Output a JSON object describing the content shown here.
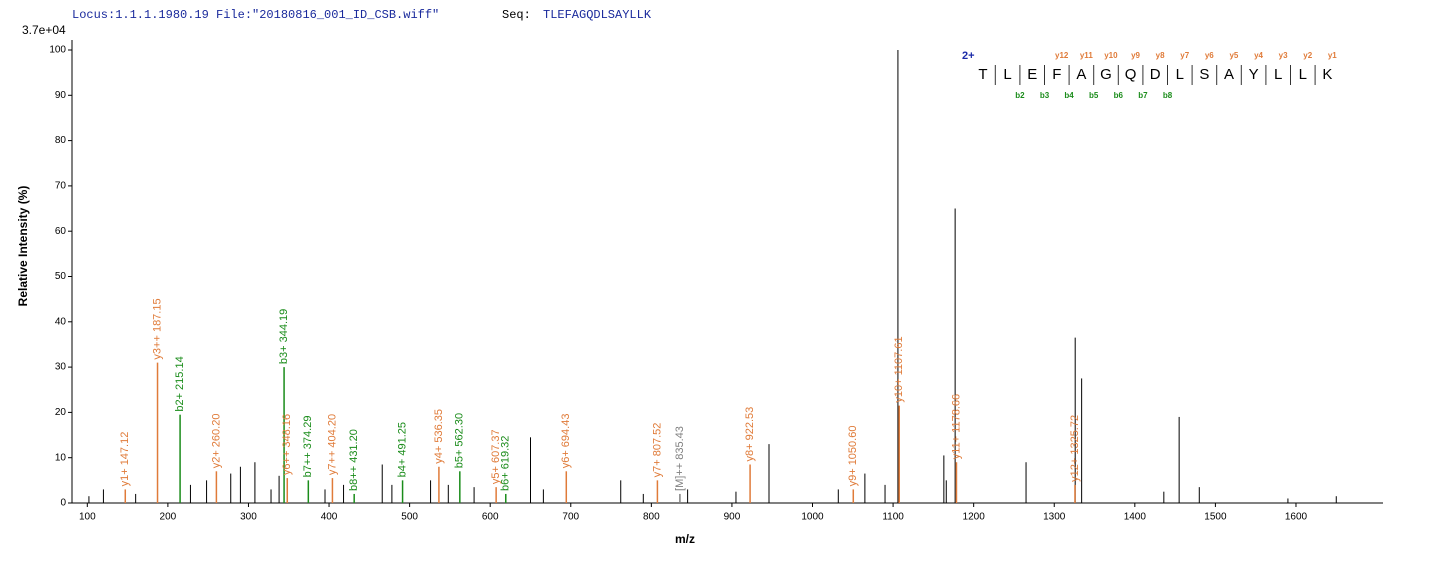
{
  "header": {
    "locus": "Locus:1.1.1.1980.19 File:\"20180816_001_ID_CSB.wiff\"",
    "seq_label": "Seq:",
    "seq": "TLEFAGQDLSAYLLK"
  },
  "chart_data": {
    "type": "spectrum",
    "y_scale_label": "3.7e+04",
    "x_label": "m/z",
    "y_label": "Relative   Intensity (%)",
    "xlim": [
      81,
      1708
    ],
    "ylim": [
      0,
      100
    ],
    "xticks": [
      100,
      200,
      300,
      400,
      500,
      600,
      700,
      800,
      900,
      1000,
      1100,
      1200,
      1300,
      1400,
      1500,
      1600
    ],
    "yticks": [
      0,
      10,
      20,
      30,
      40,
      50,
      60,
      70,
      80,
      90,
      100
    ],
    "color": "#000000",
    "x": [
      102,
      120,
      160,
      228,
      248,
      278,
      290,
      308,
      328,
      338,
      395,
      418,
      466,
      478,
      526,
      548,
      580,
      650,
      666,
      762,
      790,
      845,
      905,
      946,
      1032,
      1065,
      1090,
      1106,
      1163,
      1166,
      1177,
      1265,
      1326,
      1334,
      1436,
      1455,
      1480,
      1590,
      1650
    ],
    "values": [
      1.5,
      3,
      2,
      4,
      5,
      6.5,
      8,
      9,
      3,
      6,
      3,
      4,
      8.5,
      4,
      5,
      4,
      3.5,
      14.5,
      3,
      5,
      2,
      3,
      2.5,
      13,
      3,
      6.5,
      4,
      100,
      10.5,
      5,
      65,
      9,
      36.5,
      27.5,
      2.5,
      19,
      3.5,
      1,
      1.5
    ],
    "annotations": [
      {
        "label": "y1+ 147.12",
        "x": 147.12,
        "value": 3,
        "color": "#e07b39"
      },
      {
        "label": "y3++ 187.15",
        "x": 187.15,
        "value": 31,
        "color": "#e07b39"
      },
      {
        "label": "b2+ 215.14",
        "x": 215.14,
        "value": 19.5,
        "color": "#1a8c1a"
      },
      {
        "label": "y2+ 260.20",
        "x": 260.2,
        "value": 7,
        "color": "#e07b39"
      },
      {
        "label": "b3+ 344.19",
        "x": 344.19,
        "value": 30,
        "color": "#1a8c1a"
      },
      {
        "label": "y6++ 348.16",
        "x": 348.16,
        "value": 5.5,
        "color": "#e07b39"
      },
      {
        "label": "b7++ 374.29",
        "x": 374.29,
        "value": 5,
        "color": "#1a8c1a"
      },
      {
        "label": "y7++ 404.20",
        "x": 404.2,
        "value": 5.5,
        "color": "#e07b39"
      },
      {
        "label": "b8++ 431.20",
        "x": 431.2,
        "value": 2,
        "color": "#1a8c1a"
      },
      {
        "label": "b4+ 491.25",
        "x": 491.25,
        "value": 5,
        "color": "#1a8c1a"
      },
      {
        "label": "y4+ 536.35",
        "x": 536.35,
        "value": 8,
        "color": "#e07b39"
      },
      {
        "label": "b5+ 562.30",
        "x": 562.3,
        "value": 7,
        "color": "#1a8c1a"
      },
      {
        "label": "y5+ 607.37",
        "x": 607.37,
        "value": 3.5,
        "color": "#e07b39"
      },
      {
        "label": "b6+ 619.32",
        "x": 619.32,
        "value": 2,
        "color": "#1a8c1a"
      },
      {
        "label": "y6+ 694.43",
        "x": 694.43,
        "value": 7,
        "color": "#e07b39"
      },
      {
        "label": "y7+ 807.52",
        "x": 807.52,
        "value": 5,
        "color": "#e07b39"
      },
      {
        "label": "[M]++ 835.43",
        "x": 835.43,
        "value": 2,
        "color": "#808080"
      },
      {
        "label": "y8+ 922.53",
        "x": 922.53,
        "value": 8.5,
        "color": "#e07b39"
      },
      {
        "label": "y9+ 1050.60",
        "x": 1050.6,
        "value": 3,
        "color": "#e07b39"
      },
      {
        "label": "y10+ 1107.61",
        "x": 1107.61,
        "value": 21.5,
        "color": "#e07b39"
      },
      {
        "label": "y11+ 1178.66",
        "x": 1178.66,
        "value": 9,
        "color": "#e07b39"
      },
      {
        "label": "y12+ 1325.72",
        "x": 1325.72,
        "value": 4,
        "color": "#e07b39"
      }
    ]
  },
  "sequence_map": {
    "charge": "2+",
    "residues": [
      "T",
      "L",
      "E",
      "F",
      "A",
      "G",
      "Q",
      "D",
      "L",
      "S",
      "A",
      "Y",
      "L",
      "L",
      "K"
    ],
    "y_ions": [
      "y12",
      "y11",
      "y10",
      "y9",
      "y8",
      "y7",
      "y6",
      "y5",
      "y4",
      "y3",
      "y2",
      "y1"
    ],
    "b_ions": [
      "b2",
      "b3",
      "b4",
      "b5",
      "b6",
      "b7",
      "b8"
    ]
  }
}
